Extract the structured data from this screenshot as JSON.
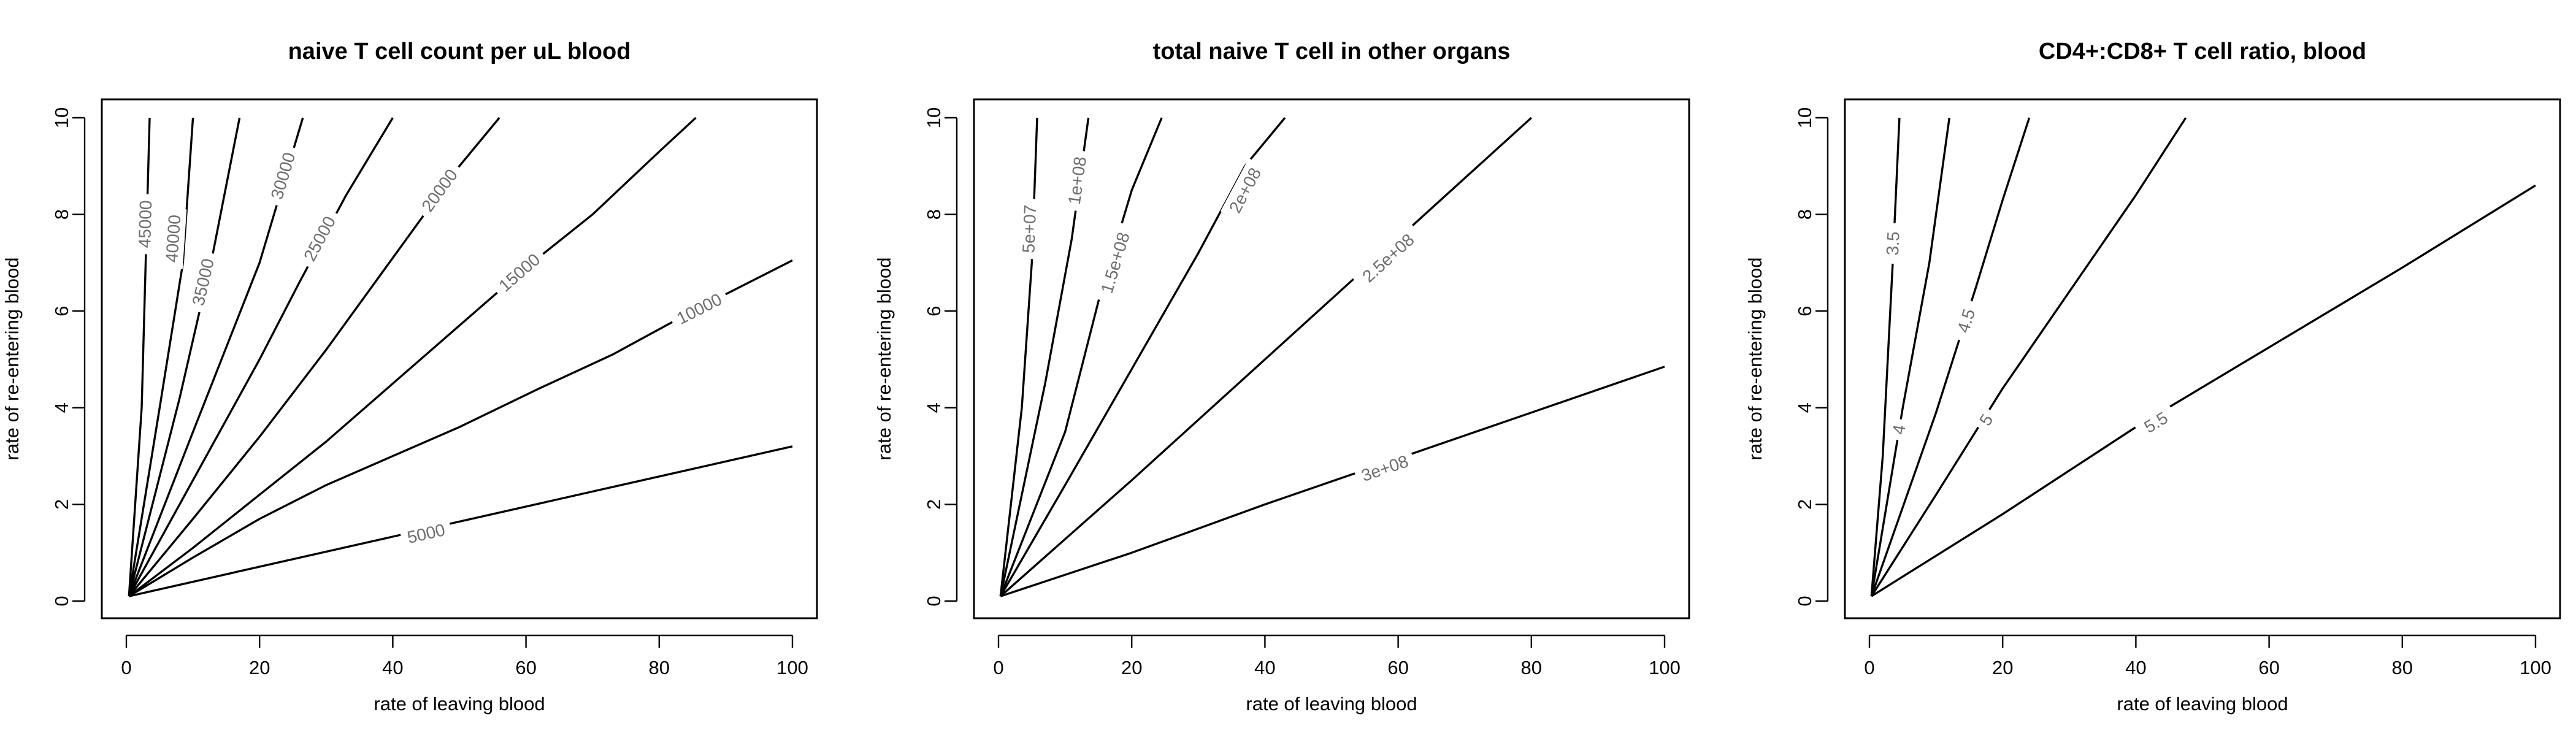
{
  "chart_data": [
    {
      "type": "contour",
      "title": "naive T cell count per uL blood",
      "xlabel": "rate of leaving blood",
      "ylabel": "rate of re-entering blood",
      "xlim": [
        0,
        100
      ],
      "ylim": [
        0,
        10
      ],
      "xticks": [
        "0",
        "20",
        "40",
        "60",
        "80",
        "100"
      ],
      "yticks": [
        "0",
        "2",
        "4",
        "6",
        "8",
        "10"
      ],
      "grid": false,
      "contours": [
        {
          "label": "5000",
          "points": [
            [
              0.4,
              0.1
            ],
            [
              100,
              3.2
            ]
          ],
          "label_at": [
            45,
            1.4
          ]
        },
        {
          "label": "10000",
          "points": [
            [
              0.4,
              0.1
            ],
            [
              10,
              0.9
            ],
            [
              20,
              1.7
            ],
            [
              30,
              2.4
            ],
            [
              40,
              3.0
            ],
            [
              50,
              3.6
            ],
            [
              62,
              4.4
            ],
            [
              73,
              5.1
            ],
            [
              85,
              6.0
            ],
            [
              100,
              7.05
            ]
          ],
          "label_at": [
            86,
            6.05
          ]
        },
        {
          "label": "15000",
          "points": [
            [
              0.4,
              0.1
            ],
            [
              10,
              1.1
            ],
            [
              20,
              2.2
            ],
            [
              30,
              3.3
            ],
            [
              40,
              4.5
            ],
            [
              50,
              5.7
            ],
            [
              60,
              6.9
            ],
            [
              70,
              8.0
            ],
            [
              80,
              9.3
            ],
            [
              85.5,
              10
            ]
          ],
          "label_at": [
            59,
            6.8
          ]
        },
        {
          "label": "20000",
          "points": [
            [
              0.4,
              0.1
            ],
            [
              10,
              1.7
            ],
            [
              20,
              3.4
            ],
            [
              30,
              5.2
            ],
            [
              40,
              7.1
            ],
            [
              50,
              9.0
            ],
            [
              56,
              10
            ]
          ],
          "label_at": [
            47,
            8.5
          ]
        },
        {
          "label": "25000",
          "points": [
            [
              0.4,
              0.1
            ],
            [
              10,
              2.5
            ],
            [
              20,
              5.0
            ],
            [
              26,
              6.6
            ],
            [
              33,
              8.4
            ],
            [
              40,
              10
            ]
          ],
          "label_at": [
            29,
            7.5
          ]
        },
        {
          "label": "30000",
          "points": [
            [
              0.4,
              0.1
            ],
            [
              10,
              3.5
            ],
            [
              20,
              7.0
            ],
            [
              26.5,
              10
            ]
          ],
          "label_at": [
            23.5,
            8.8
          ]
        },
        {
          "label": "35000",
          "points": [
            [
              0.4,
              0.1
            ],
            [
              8,
              4.2
            ],
            [
              13,
              7.2
            ],
            [
              17,
              10
            ]
          ],
          "label_at": [
            11.5,
            6.6
          ]
        },
        {
          "label": "40000",
          "points": [
            [
              0.4,
              0.1
            ],
            [
              5,
              4.0
            ],
            [
              8.5,
              7.0
            ],
            [
              10,
              10
            ]
          ],
          "label_at": [
            7.0,
            7.5
          ]
        },
        {
          "label": "45000",
          "points": [
            [
              0.4,
              0.1
            ],
            [
              2.3,
              4.0
            ],
            [
              3.5,
              10
            ]
          ],
          "label_at": [
            2.8,
            7.8
          ]
        }
      ]
    },
    {
      "type": "contour",
      "title": "total naive T cell in other organs",
      "xlabel": "rate of leaving blood",
      "ylabel": "rate of re-entering blood",
      "xlim": [
        0,
        100
      ],
      "ylim": [
        0,
        10
      ],
      "xticks": [
        "0",
        "20",
        "40",
        "60",
        "80",
        "100"
      ],
      "yticks": [
        "0",
        "2",
        "4",
        "6",
        "8",
        "10"
      ],
      "grid": false,
      "contours": [
        {
          "label": "5e+07",
          "points": [
            [
              0.3,
              0.1
            ],
            [
              3.5,
              4.0
            ],
            [
              5,
              7.0
            ],
            [
              5.8,
              10
            ]
          ],
          "label_at": [
            4.6,
            7.7
          ]
        },
        {
          "label": "1e+08",
          "points": [
            [
              0.3,
              0.1
            ],
            [
              7,
              4.5
            ],
            [
              11,
              7.5
            ],
            [
              13.5,
              10
            ]
          ],
          "label_at": [
            11.8,
            8.7
          ]
        },
        {
          "label": "1.5e+08",
          "points": [
            [
              0.3,
              0.1
            ],
            [
              10,
              3.5
            ],
            [
              15,
              6.2
            ],
            [
              20,
              8.5
            ],
            [
              24.5,
              10
            ]
          ],
          "label_at": [
            17.5,
            7.0
          ]
        },
        {
          "label": "2e+08",
          "points": [
            [
              0.3,
              0.1
            ],
            [
              10,
              2.4
            ],
            [
              20,
              4.8
            ],
            [
              30,
              7.2
            ],
            [
              37,
              9.0
            ],
            [
              43,
              10
            ]
          ],
          "label_at": [
            37,
            8.5
          ]
        },
        {
          "label": "2.5e+08",
          "points": [
            [
              0.3,
              0.1
            ],
            [
              20,
              2.5
            ],
            [
              40,
              5.0
            ],
            [
              60,
              7.5
            ],
            [
              80,
              10
            ]
          ],
          "label_at": [
            58.5,
            7.1
          ]
        },
        {
          "label": "3e+08",
          "points": [
            [
              0.3,
              0.1
            ],
            [
              20,
              1.0
            ],
            [
              40,
              2.0
            ],
            [
              60,
              2.95
            ],
            [
              80,
              3.9
            ],
            [
              100,
              4.85
            ]
          ],
          "label_at": [
            58,
            2.75
          ]
        }
      ]
    },
    {
      "type": "contour",
      "title": "CD4+:CD8+ T cell ratio, blood",
      "xlabel": "rate of leaving blood",
      "ylabel": "rate of re-entering blood",
      "xlim": [
        0,
        100
      ],
      "ylim": [
        0,
        10
      ],
      "xticks": [
        "0",
        "20",
        "40",
        "60",
        "80",
        "100"
      ],
      "yticks": [
        "0",
        "2",
        "4",
        "6",
        "8",
        "10"
      ],
      "grid": false,
      "contours": [
        {
          "label": "3.5",
          "points": [
            [
              0.3,
              0.1
            ],
            [
              2,
              3.0
            ],
            [
              3.5,
              7.0
            ],
            [
              4.5,
              10
            ]
          ],
          "label_at": [
            3.5,
            7.4
          ]
        },
        {
          "label": "4",
          "points": [
            [
              0.3,
              0.1
            ],
            [
              5,
              4.0
            ],
            [
              9,
              7.0
            ],
            [
              12,
              10
            ]
          ],
          "label_at": [
            4.4,
            3.55
          ]
        },
        {
          "label": "4.5",
          "points": [
            [
              0.3,
              0.1
            ],
            [
              10,
              3.9
            ],
            [
              16,
              6.5
            ],
            [
              20,
              8.3
            ],
            [
              24,
              10
            ]
          ],
          "label_at": [
            14.5,
            5.8
          ]
        },
        {
          "label": "5",
          "points": [
            [
              0.3,
              0.1
            ],
            [
              10,
              2.2
            ],
            [
              20,
              4.4
            ],
            [
              30,
              6.4
            ],
            [
              40,
              8.4
            ],
            [
              47.5,
              10
            ]
          ],
          "label_at": [
            17.5,
            3.75
          ]
        },
        {
          "label": "5.5",
          "points": [
            [
              0.3,
              0.1
            ],
            [
              20,
              1.8
            ],
            [
              40,
              3.6
            ],
            [
              60,
              5.25
            ],
            [
              80,
              6.9
            ],
            [
              100,
              8.6
            ]
          ],
          "label_at": [
            43,
            3.7
          ]
        }
      ]
    }
  ]
}
